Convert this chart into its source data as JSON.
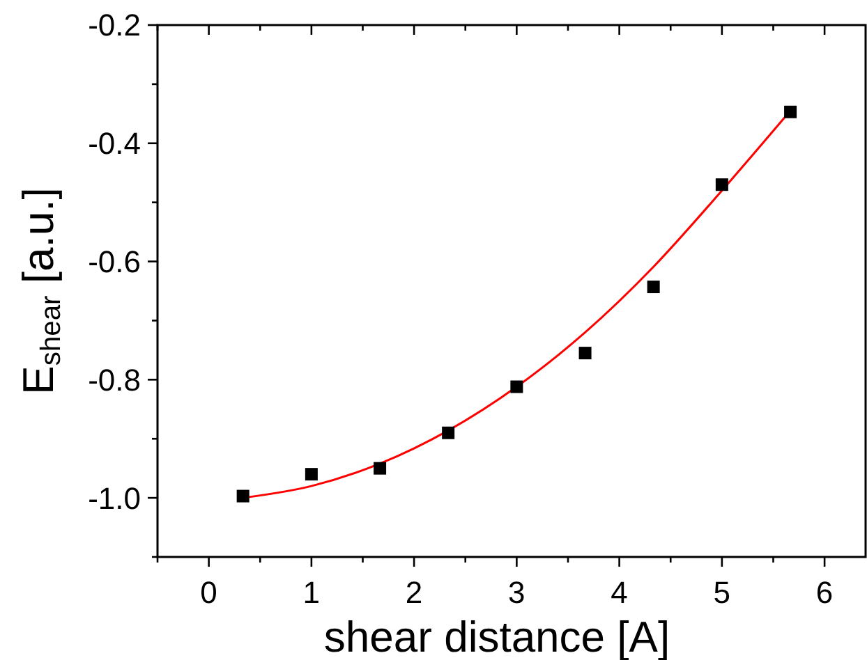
{
  "chart_data": {
    "type": "scatter",
    "xlabel": "shear distance [A]",
    "ylabel": "E$_{shear}$ [a.u.]",
    "xlim": [
      -0.5,
      6.4
    ],
    "ylim": [
      -1.1,
      -0.2
    ],
    "xticks": [
      {
        "value": -0.5,
        "label": null
      },
      0,
      {
        "value": 0.5,
        "label": null
      },
      1,
      {
        "value": 1.5,
        "label": null
      },
      2,
      {
        "value": 2.5,
        "label": null
      },
      3,
      {
        "value": 3.5,
        "label": null
      },
      4,
      {
        "value": 4.5,
        "label": null
      },
      5,
      {
        "value": 5.5,
        "label": null
      },
      6
    ],
    "yticks": [
      {
        "value": -1.1,
        "label": null
      },
      {
        "value": -1,
        "label": "-1.0"
      },
      {
        "value": -0.9,
        "label": null
      },
      -0.8,
      {
        "value": -0.7,
        "label": null
      },
      -0.6,
      {
        "value": -0.5,
        "label": null
      },
      -0.4,
      {
        "value": -0.3,
        "label": null
      },
      -0.2
    ],
    "grid": false,
    "tick_labels": [
      "x",
      "y"
    ],
    "series": [
      {
        "color": "#000000",
        "marker": "square",
        "x": [
          0.333,
          1,
          1.667,
          2.333,
          3,
          3.667,
          4.333,
          5,
          5.667
        ],
        "values": [
          -0.997,
          -0.96,
          -0.95,
          -0.89,
          -0.812,
          -0.755,
          -0.643,
          -0.47,
          -0.347
        ]
      },
      {
        "type": "line",
        "color": "#ff0000",
        "marker": "none",
        "line_style": "solid",
        "x": [
          0.333,
          1,
          1.667,
          2.333,
          3,
          3.667,
          4.333,
          5,
          5.667
        ],
        "values": [
          -1.0,
          -0.98,
          -0.942,
          -0.886,
          -0.812,
          -0.72,
          -0.609,
          -0.48,
          -0.345
        ]
      }
    ]
  }
}
